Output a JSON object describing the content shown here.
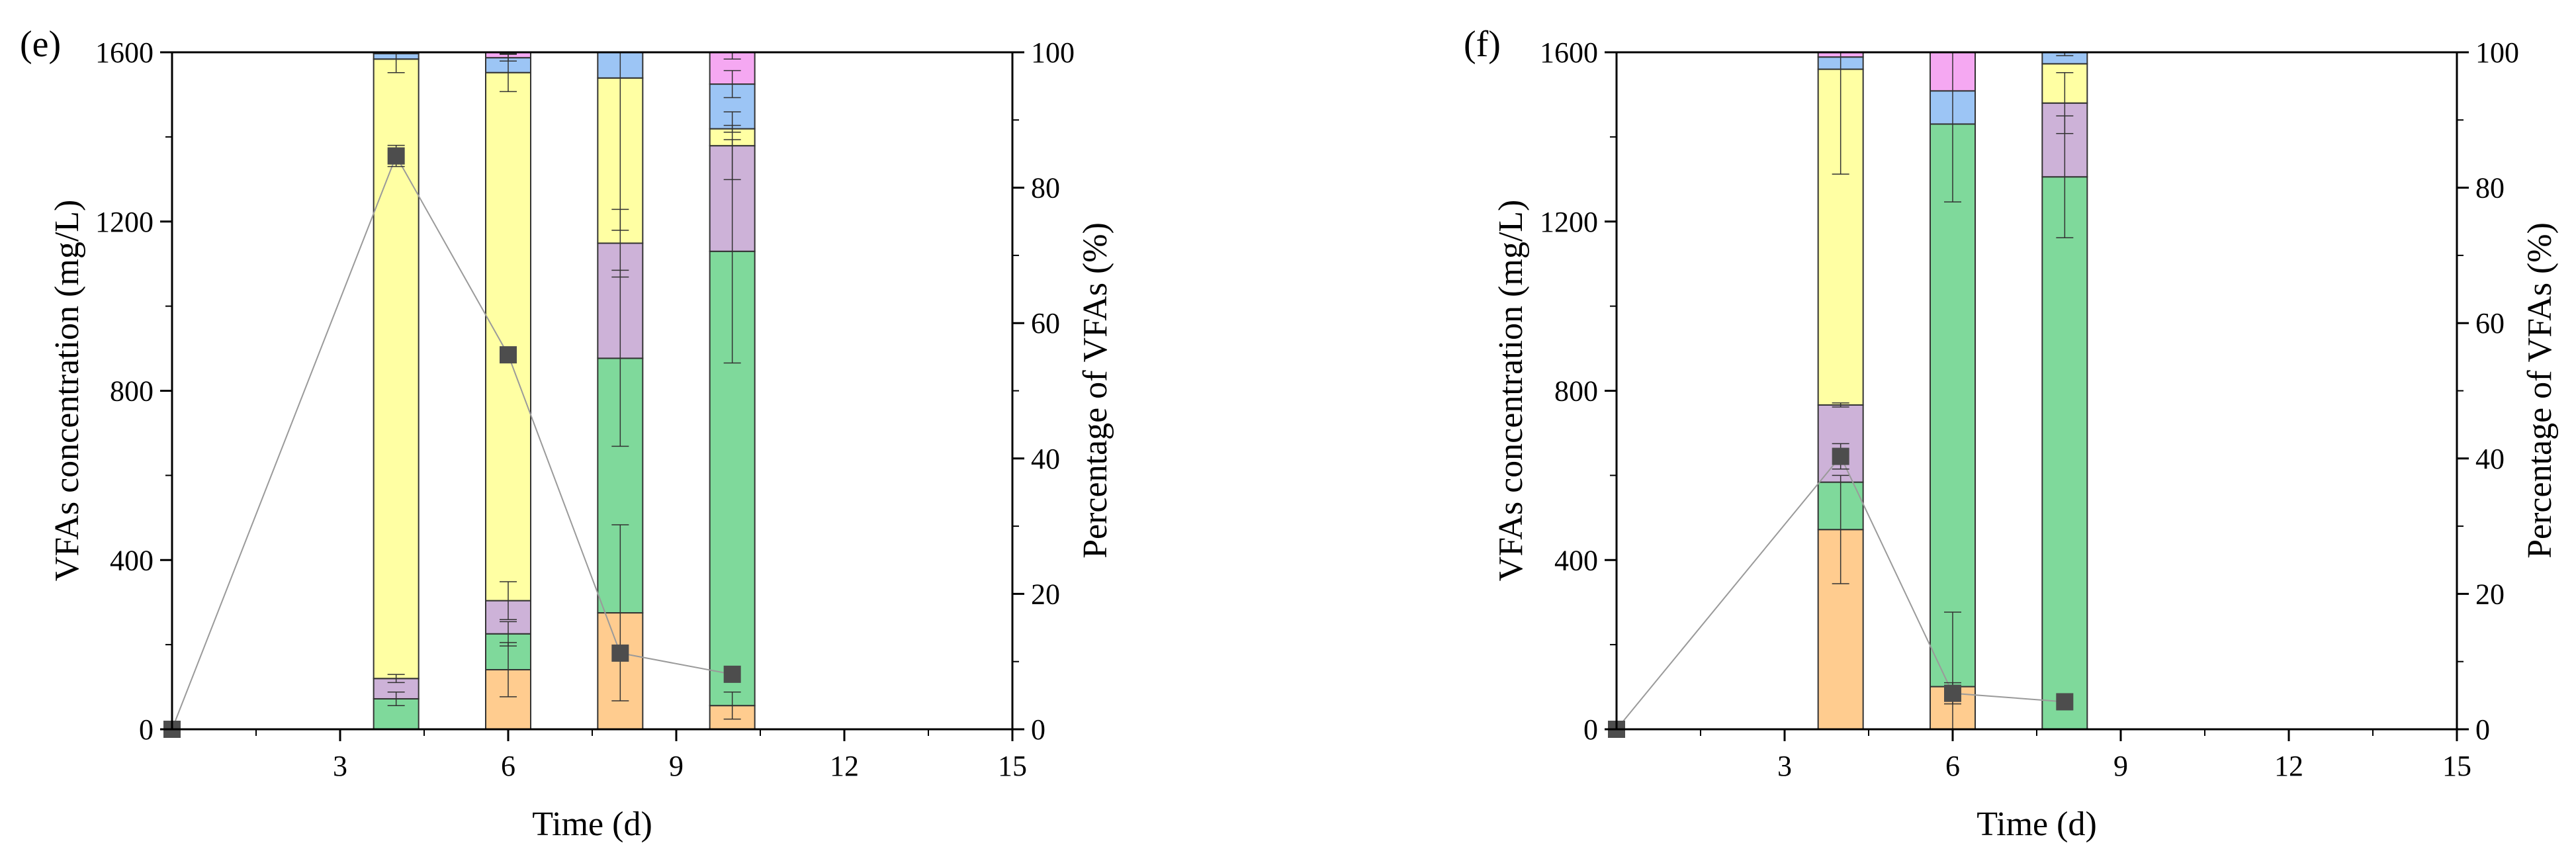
{
  "chart_data": [
    {
      "type": "bar",
      "subtype": "stacked-bar-with-line",
      "panel_label": "(e)",
      "title": "",
      "xlabel": "Time (d)",
      "ylabel": "VFAs concentration (mg/L)",
      "y2label": "Percentage of VFAs (%)",
      "xlim": [
        0,
        15
      ],
      "ylim": [
        0,
        1600
      ],
      "y2lim": [
        0,
        100
      ],
      "xticks": [
        3,
        6,
        9,
        12,
        15
      ],
      "yticks": [
        0,
        400,
        800,
        1200,
        1600
      ],
      "y2ticks": [
        0,
        20,
        40,
        60,
        80,
        100
      ],
      "grid": false,
      "legend": "none",
      "component_colors": [
        "#FFCC8F",
        "#7FD99B",
        "#CDB2D8",
        "#FFFFA3",
        "#9CC5F5",
        "#F5A8F2"
      ],
      "bars": [
        {
          "x": 4,
          "segments": [
            0,
            4.5,
            3.0,
            91.5,
            0.8,
            0.2
          ],
          "errors": [
            0,
            1.0,
            0.6,
            2.0,
            0,
            0
          ]
        },
        {
          "x": 6,
          "segments": [
            8.8,
            5.3,
            4.9,
            78.0,
            2.2,
            0.8
          ],
          "errors": [
            4.0,
            1.8,
            2.8,
            2.8,
            0.5,
            0
          ]
        },
        {
          "x": 8,
          "segments": [
            17.2,
            37.6,
            17.0,
            24.4,
            3.8,
            0
          ],
          "errors": [
            13.0,
            13.0,
            5.0,
            22.5,
            0,
            0
          ]
        },
        {
          "x": 10,
          "segments": [
            3.5,
            67.1,
            15.6,
            2.5,
            6.6,
            4.7
          ],
          "errors": [
            2.0,
            16.5,
            5.0,
            0.5,
            2.0,
            1.0
          ]
        }
      ],
      "line": {
        "x": [
          0,
          4,
          6,
          8,
          10
        ],
        "y": [
          0,
          1355,
          885,
          180,
          130
        ],
        "errors": [
          0,
          25,
          0,
          0,
          0
        ]
      }
    },
    {
      "type": "bar",
      "subtype": "stacked-bar-with-line",
      "panel_label": "(f)",
      "title": "",
      "xlabel": "Time (d)",
      "ylabel": "VFAs concentration (mg/L)",
      "y2label": "Percentage of VFAs (%)",
      "xlim": [
        0,
        15
      ],
      "ylim": [
        0,
        1600
      ],
      "y2lim": [
        0,
        100
      ],
      "xticks": [
        3,
        6,
        9,
        12,
        15
      ],
      "yticks": [
        0,
        400,
        800,
        1200,
        1600
      ],
      "y2ticks": [
        0,
        20,
        40,
        60,
        80,
        100
      ],
      "grid": false,
      "legend": "none",
      "component_colors": [
        "#FFCC8F",
        "#7FD99B",
        "#CDB2D8",
        "#FFFFA3",
        "#9CC5F5",
        "#F5A8F2"
      ],
      "bars": [
        {
          "x": 4,
          "segments": [
            29.5,
            7.0,
            11.4,
            49.6,
            1.8,
            0.7
          ],
          "errors": [
            8.0,
            0,
            0.3,
            15.5,
            0,
            0
          ]
        },
        {
          "x": 6,
          "segments": [
            6.3,
            83.1,
            0,
            0,
            4.9,
            5.7
          ],
          "errors": [
            11.0,
            11.5,
            0,
            0,
            0,
            0
          ]
        },
        {
          "x": 8,
          "segments": [
            0,
            81.6,
            10.9,
            5.8,
            1.7,
            0
          ],
          "errors": [
            0,
            9.0,
            4.5,
            0,
            0.5,
            0
          ]
        }
      ],
      "line": {
        "x": [
          0,
          4,
          6,
          8
        ],
        "y": [
          0,
          645,
          85,
          65
        ],
        "errors": [
          0,
          30,
          25,
          0
        ]
      }
    }
  ]
}
